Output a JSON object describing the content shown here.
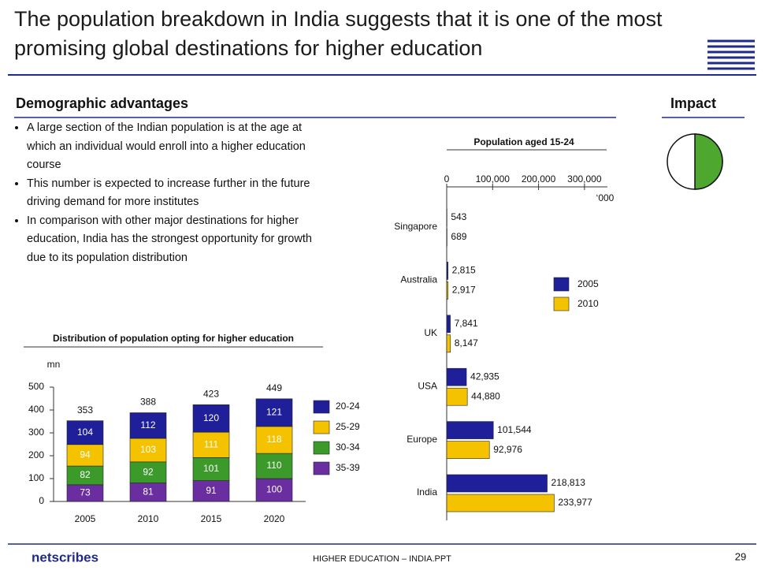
{
  "title": "The population breakdown in India suggests that it is one of the most promising global destinations for higher education",
  "left_heading": "Demographic advantages",
  "right_heading": "Impact",
  "bullets": [
    "A large section of the Indian population is at the age at which an individual would enroll into a higher education course",
    "This number is expected to increase further in the future driving demand for more institutes",
    "In comparison with other major destinations for higher education, India has the strongest opportunity for growth due to its population distribution"
  ],
  "logo": "netscribes",
  "footer": "HIGHER EDUCATION – INDIA.PPT",
  "page_number": "29",
  "chart_data": [
    {
      "type": "stacked_bar",
      "title": "Distribution of population opting for higher education",
      "y_label": "mn",
      "categories": [
        "2005",
        "2010",
        "2015",
        "2020"
      ],
      "series": [
        {
          "name": "20-24",
          "color": "#1f1f99",
          "values": [
            104,
            112,
            120,
            121
          ]
        },
        {
          "name": "25-29",
          "color": "#f5c200",
          "values": [
            94,
            103,
            111,
            118
          ]
        },
        {
          "name": "30-34",
          "color": "#3c9a2b",
          "values": [
            82,
            92,
            101,
            110
          ]
        },
        {
          "name": "35-39",
          "color": "#6a2ea0",
          "values": [
            73,
            81,
            91,
            100
          ]
        }
      ],
      "totals": [
        353,
        388,
        423,
        449
      ],
      "ylim": [
        0,
        500
      ],
      "yticks": [
        0,
        100,
        200,
        300,
        400,
        500
      ],
      "legend": "right"
    },
    {
      "type": "hbar",
      "title": "Population aged 15-24",
      "x_label": "‘000",
      "categories": [
        "Singapore",
        "Australia",
        "UK",
        "USA",
        "Europe",
        "India"
      ],
      "series": [
        {
          "name": "2005",
          "color": "#1f1f99",
          "values": [
            543,
            2815,
            7841,
            42935,
            101544,
            218813
          ],
          "value_labels": [
            "543",
            "2,815",
            "7,841",
            "42,935",
            "101,544",
            "218,813"
          ]
        },
        {
          "name": "2010",
          "color": "#f5c200",
          "values": [
            689,
            2917,
            8147,
            44880,
            92976,
            233977
          ],
          "value_labels": [
            "689",
            "2,917",
            "8,147",
            "44,880",
            "92,976",
            "233,977"
          ]
        }
      ],
      "xlim": [
        0,
        350000
      ],
      "xticks": [
        0,
        {
          "value": 100000,
          "label": "100,000"
        },
        {
          "value": 200000,
          "label": "200,000"
        },
        {
          "value": 300000,
          "label": "300,000"
        }
      ],
      "legend": "right"
    }
  ]
}
